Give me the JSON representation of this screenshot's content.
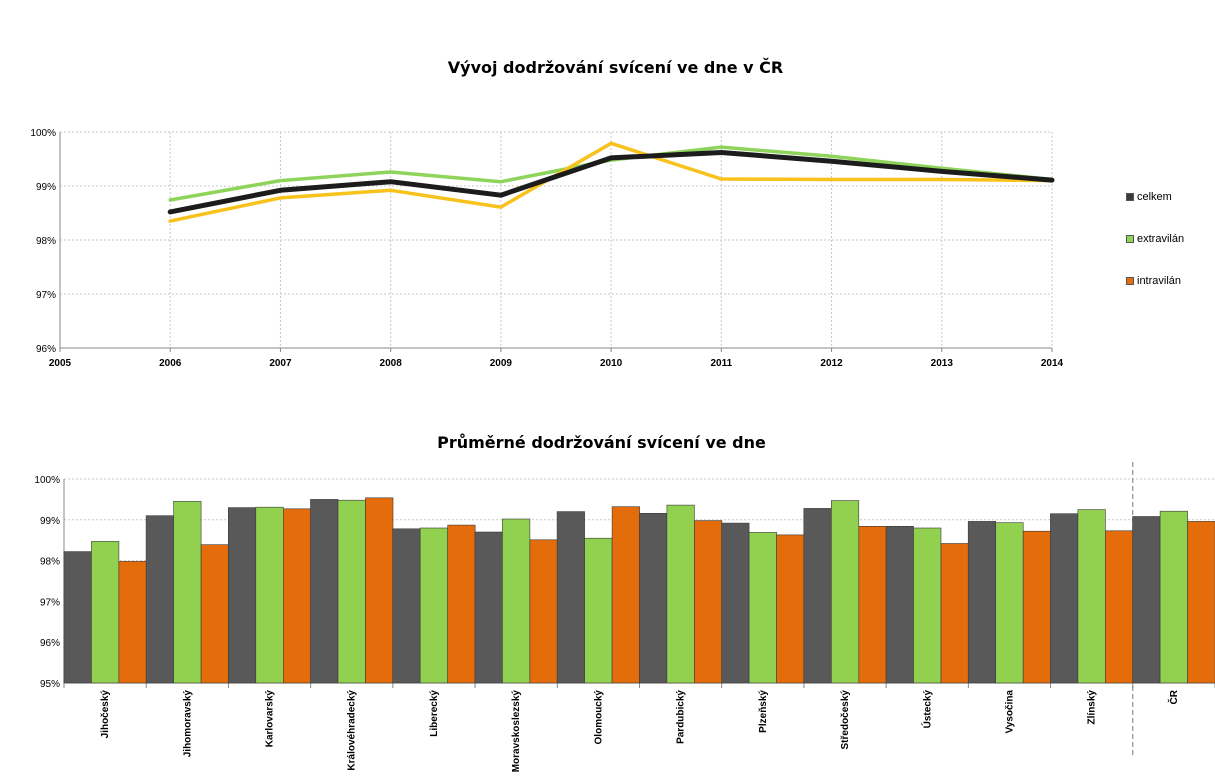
{
  "chart_data": [
    {
      "type": "line",
      "title": "Vývoj dodržování svícení ve dne v ČR",
      "x": [
        2006,
        2007,
        2008,
        2009,
        2010,
        2011,
        2012,
        2013,
        2014
      ],
      "xticks": [
        "2005",
        "2006",
        "2007",
        "2008",
        "2009",
        "2010",
        "2011",
        "2012",
        "2013",
        "2014"
      ],
      "xlim": [
        2005,
        2014
      ],
      "yticks": [
        "96%",
        "97%",
        "98%",
        "99%",
        "100%"
      ],
      "ylim": [
        96,
        100
      ],
      "grid": true,
      "legend_position": "right",
      "series": [
        {
          "name": "celkem",
          "color": "#1c1c1c",
          "legend_color": "#3c3c3c",
          "values": [
            98.52,
            98.92,
            99.08,
            98.83,
            99.52,
            99.62,
            99.46,
            99.27,
            99.11
          ]
        },
        {
          "name": "extravilán",
          "color": "#8ed45a",
          "legend_color": "#8ed45a",
          "values": [
            98.74,
            99.1,
            99.26,
            99.08,
            99.48,
            99.72,
            99.55,
            99.33,
            99.12
          ]
        },
        {
          "name": "intravilán",
          "color": "#f7c21b",
          "legend_color": "#e46c0a",
          "values": [
            98.35,
            98.78,
            98.92,
            98.61,
            99.79,
            99.13,
            99.12,
            99.12,
            99.1
          ]
        }
      ]
    },
    {
      "type": "bar",
      "title": "Průměrné dodržování svícení ve dne",
      "categories": [
        "Jihočeský",
        "Jihomoravský",
        "Karlovarský",
        "Královéhradecký",
        "Liberecký",
        "Moravskoslezský",
        "Olomoucký",
        "Pardubický",
        "Plzeňský",
        "Středočeský",
        "Ústecký",
        "Vysočina",
        "Zlínský",
        "ČR"
      ],
      "yticks": [
        "95%",
        "96%",
        "97%",
        "98%",
        "99%",
        "100%"
      ],
      "ylim": [
        95,
        100
      ],
      "grid": true,
      "series": [
        {
          "name": "celkem",
          "color": "#595959",
          "values": [
            98.22,
            99.1,
            99.3,
            99.5,
            98.78,
            98.7,
            99.2,
            99.16,
            98.92,
            99.28,
            98.84,
            98.96,
            99.15,
            99.08
          ]
        },
        {
          "name": "extravilán",
          "color": "#92d050",
          "values": [
            98.47,
            99.45,
            99.31,
            99.48,
            98.8,
            99.02,
            98.55,
            99.36,
            98.69,
            99.47,
            98.8,
            98.93,
            99.25,
            99.21
          ]
        },
        {
          "name": "intravilán",
          "color": "#e46c0a",
          "values": [
            97.98,
            98.39,
            99.27,
            99.54,
            98.87,
            98.51,
            99.32,
            98.98,
            98.63,
            98.84,
            98.42,
            98.72,
            98.73,
            98.96
          ]
        }
      ]
    }
  ]
}
